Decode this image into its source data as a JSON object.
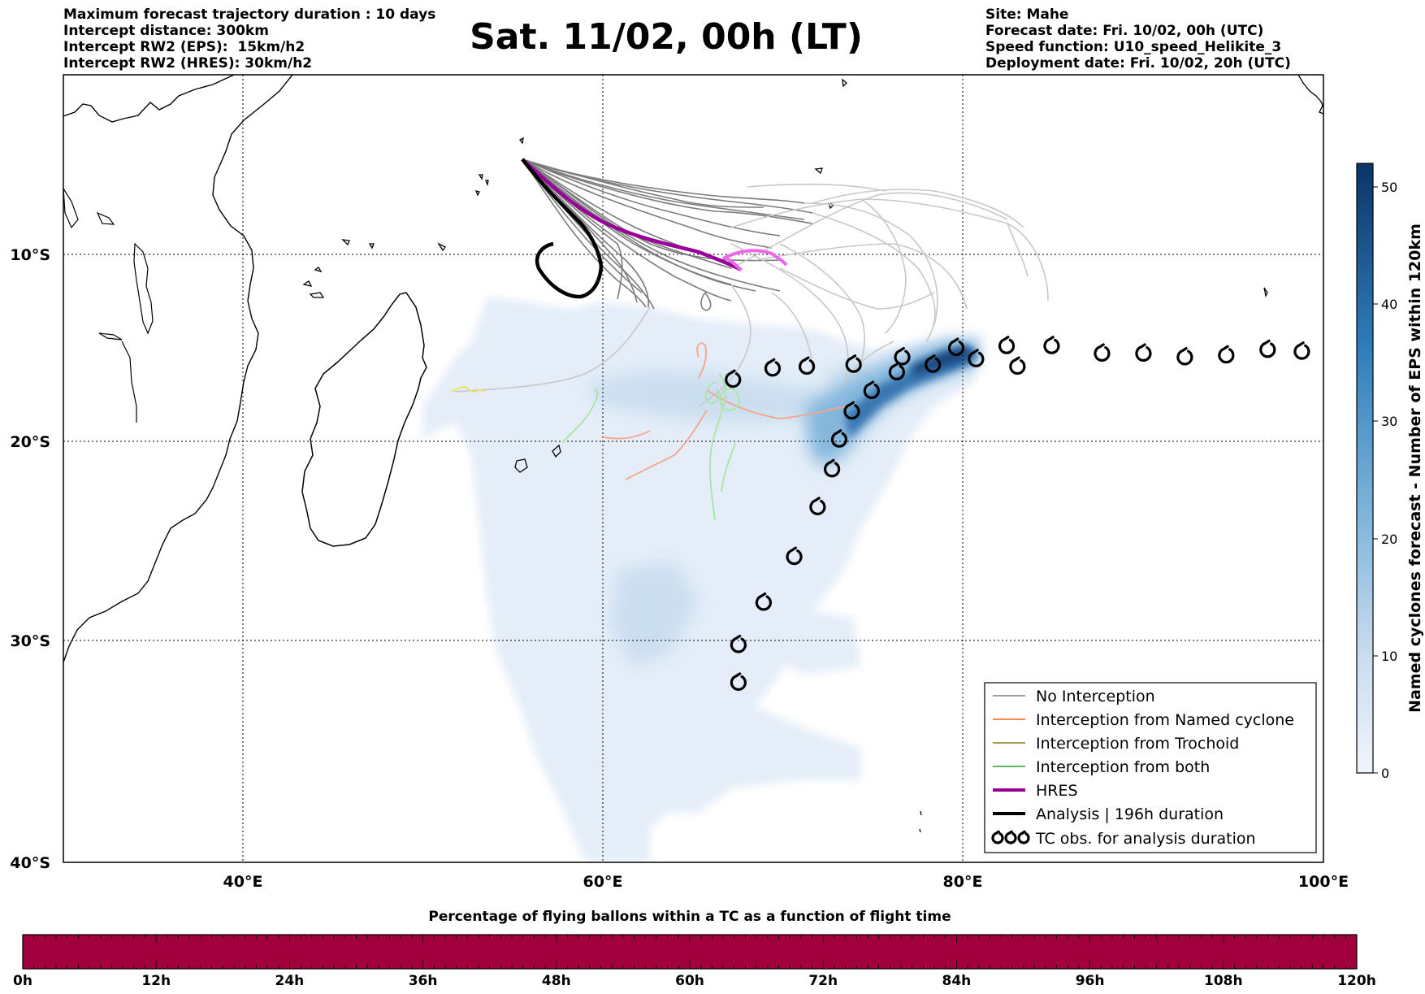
{
  "header": {
    "left_lines": [
      "Maximum forecast trajectory duration : 10 days",
      "Intercept distance: 300km",
      "Intercept RW2 (EPS):  15km/h2",
      "Intercept RW2 (HRES): 30km/h2"
    ],
    "right_lines": [
      "Site: Mahe",
      "Forecast date: Fri. 10/02, 00h (UTC)",
      "Speed function: U10_speed_Helikite_3",
      "Deployment date: Fri. 10/02, 20h (UTC)"
    ],
    "title": "Sat. 11/02, 00h (LT)"
  },
  "map": {
    "lon_ticks": [
      "40°E",
      "60°E",
      "80°E",
      "100°E"
    ],
    "lat_ticks": [
      "10°S",
      "20°S",
      "30°S",
      "40°S"
    ],
    "lon_range": [
      30,
      100
    ],
    "lat_range": [
      0,
      -40
    ],
    "launch_site": "Mahe"
  },
  "legend": {
    "items": [
      {
        "label": "No Interception",
        "color": "#808080",
        "style": "thin"
      },
      {
        "label": "Interception from Named cyclone",
        "color": "#f26522",
        "style": "thin"
      },
      {
        "label": "Interception from Trochoid",
        "color": "#8a7a1a",
        "style": "thin"
      },
      {
        "label": "Interception from both",
        "color": "#2aa02a",
        "style": "thin"
      },
      {
        "label": "HRES",
        "color": "#990099",
        "style": "thick"
      },
      {
        "label": "Analysis | 196h duration",
        "color": "#000000",
        "style": "thick"
      },
      {
        "label": "TC obs. for analysis duration",
        "color": "#000000",
        "style": "tc-symbol"
      }
    ]
  },
  "colorbar": {
    "label": "Named cyclones forecast - Number of EPS within 120km",
    "ticks": [
      "0",
      "10",
      "20",
      "30",
      "40",
      "50"
    ],
    "range": [
      0,
      52
    ],
    "color_low": "#f0f5fc",
    "color_high": "#0b3468"
  },
  "timebar": {
    "title": "Percentage of flying ballons within a TC as a function of flight time",
    "ticks": [
      "0h",
      "12h",
      "24h",
      "36h",
      "48h",
      "60h",
      "72h",
      "84h",
      "96h",
      "108h",
      "120h"
    ],
    "color": "#a1003d"
  },
  "tc_observations": [
    {
      "lon": 98.8,
      "lat": -15.2
    },
    {
      "lon": 96.9,
      "lat": -15.1
    },
    {
      "lon": 94.6,
      "lat": -15.4
    },
    {
      "lon": 92.3,
      "lat": -15.5
    },
    {
      "lon": 90.0,
      "lat": -15.3
    },
    {
      "lon": 87.7,
      "lat": -15.3
    },
    {
      "lon": 84.9,
      "lat": -14.9
    },
    {
      "lon": 83.0,
      "lat": -16.0
    },
    {
      "lon": 82.4,
      "lat": -14.9
    },
    {
      "lon": 80.7,
      "lat": -15.6
    },
    {
      "lon": 79.6,
      "lat": -15.0
    },
    {
      "lon": 78.3,
      "lat": -15.9
    },
    {
      "lon": 76.6,
      "lat": -15.5
    },
    {
      "lon": 76.3,
      "lat": -16.3
    },
    {
      "lon": 74.9,
      "lat": -17.3
    },
    {
      "lon": 73.9,
      "lat": -15.9
    },
    {
      "lon": 73.8,
      "lat": -18.4
    },
    {
      "lon": 73.1,
      "lat": -19.9
    },
    {
      "lon": 72.7,
      "lat": -21.4
    },
    {
      "lon": 71.9,
      "lat": -23.3
    },
    {
      "lon": 70.6,
      "lat": -25.8
    },
    {
      "lon": 68.9,
      "lat": -28.1
    },
    {
      "lon": 67.5,
      "lat": -30.2
    },
    {
      "lon": 67.5,
      "lat": -31.9
    },
    {
      "lon": 67.2,
      "lat": -16.7
    },
    {
      "lon": 69.4,
      "lat": -16.1
    },
    {
      "lon": 71.3,
      "lat": -16.0
    }
  ]
}
